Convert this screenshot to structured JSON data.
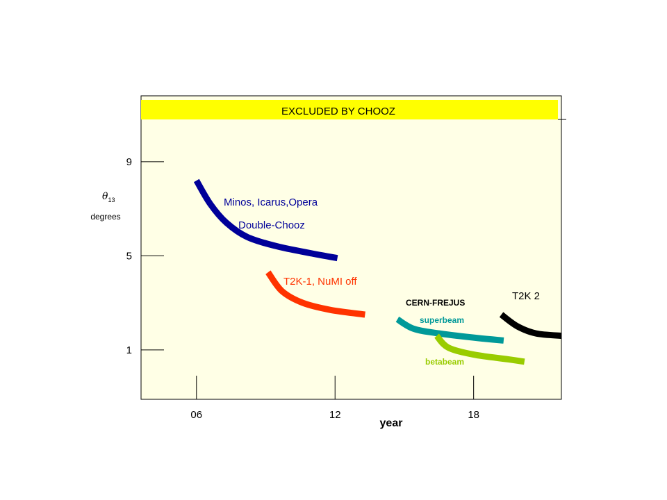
{
  "chart_data": {
    "type": "line",
    "title": "",
    "xlabel": "year",
    "ylabel": "θ13",
    "ylabel_symbol": "θ",
    "ylabel_subscript": "13",
    "ylabel_units": "degrees",
    "x_ticks": [
      {
        "value": 6,
        "label": "06"
      },
      {
        "value": 12,
        "label": "12"
      },
      {
        "value": 18,
        "label": "18"
      }
    ],
    "y_ticks": [
      {
        "value": 9,
        "label": "9"
      },
      {
        "value": 5,
        "label": "5"
      },
      {
        "value": 1,
        "label": "1"
      }
    ],
    "xlim": [
      3.6,
      21.8
    ],
    "ylim": [
      -1.1,
      11.8
    ],
    "excluded_band": {
      "label": "EXCLUDED BY CHOOZ",
      "y_from": 11.0,
      "y_to": 11.8,
      "color": "#ffff00"
    },
    "background_color": "#ffffe6",
    "series": [
      {
        "name": "Minos, Icarus,Opera",
        "name2": "Double-Chooz",
        "color": "#000099",
        "points": [
          [
            6.0,
            8.2
          ],
          [
            6.6,
            7.2
          ],
          [
            7.3,
            6.4
          ],
          [
            8.2,
            5.8
          ],
          [
            9.5,
            5.4
          ],
          [
            11.0,
            5.1
          ],
          [
            12.1,
            4.9
          ]
        ]
      },
      {
        "name": "T2K-1, NuMI off",
        "color": "#ff3300",
        "points": [
          [
            9.1,
            4.3
          ],
          [
            9.7,
            3.5
          ],
          [
            10.6,
            3.0
          ],
          [
            11.8,
            2.7
          ],
          [
            13.3,
            2.5
          ]
        ]
      },
      {
        "name": "superbeam",
        "group_label": "CERN-FREJUS",
        "color": "#009999",
        "points": [
          [
            14.7,
            2.3
          ],
          [
            15.4,
            1.9
          ],
          [
            16.5,
            1.7
          ],
          [
            18.2,
            1.5
          ],
          [
            19.3,
            1.4
          ]
        ]
      },
      {
        "name": "betabeam",
        "color": "#99cc00",
        "points": [
          [
            16.4,
            1.6
          ],
          [
            16.9,
            1.1
          ],
          [
            18.0,
            0.8
          ],
          [
            19.5,
            0.6
          ],
          [
            20.2,
            0.5
          ]
        ]
      },
      {
        "name": "T2K 2",
        "color": "#000000",
        "points": [
          [
            19.2,
            2.5
          ],
          [
            19.9,
            2.0
          ],
          [
            20.7,
            1.7
          ],
          [
            21.8,
            1.6
          ]
        ]
      }
    ]
  }
}
